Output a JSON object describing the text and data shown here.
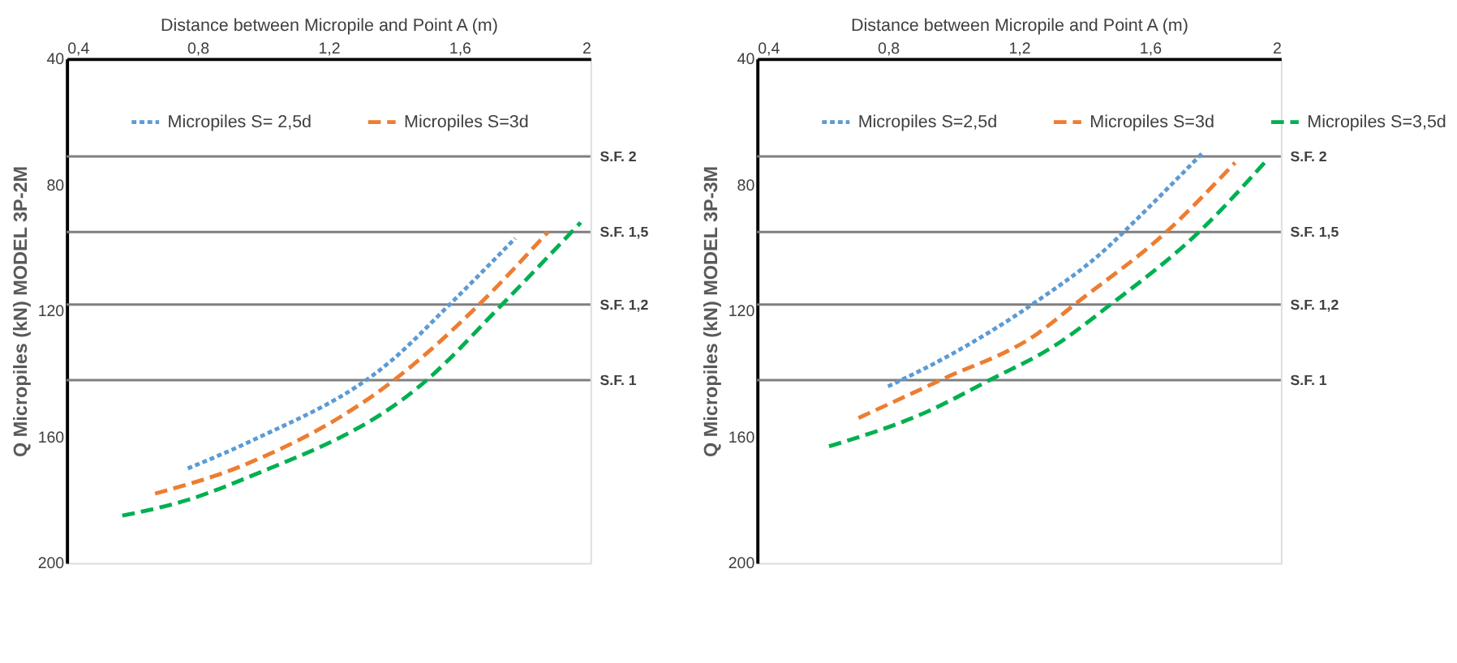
{
  "chart_data": [
    {
      "type": "line",
      "xlabel": "Distance between Micropile and Point A  (m)",
      "ylabel": "Q Micropiles (kN) MODEL 3P-2M",
      "xlim": [
        0.4,
        2
      ],
      "xticks": [
        {
          "value": 0.4,
          "label": "0,4"
        },
        {
          "value": 0.8,
          "label": "0,8"
        },
        {
          "value": 1.2,
          "label": "1,2"
        },
        {
          "value": 1.6,
          "label": "1,6"
        },
        2
      ],
      "ylim": [
        200,
        40
      ],
      "yticks": [
        40,
        80,
        120,
        160,
        200
      ],
      "grid": false,
      "legend": "top",
      "marker": "none",
      "series": [
        {
          "name": "Micropiles S= 2,5d",
          "color": "#5b9bd5",
          "line_style": "dotted",
          "x": [
            0.77,
            0.97,
            1.39,
            1.57,
            1.77
          ],
          "values": [
            170,
            161,
            136,
            118,
            97
          ]
        },
        {
          "name": "Micropiles S=3d",
          "color": "#ed7d31",
          "line_style": "dashed",
          "x": [
            0.67,
            0.94,
            1.4,
            1.66,
            1.87
          ],
          "values": [
            178,
            169,
            142,
            118,
            95
          ]
        },
        {
          "color": "#00b050",
          "line_style": "dashed",
          "x": [
            0.57,
            0.77,
            0.95,
            1.5,
            1.73,
            1.97
          ],
          "values": [
            185,
            180,
            173,
            142,
            118,
            92
          ]
        }
      ],
      "ref_lines": [
        {
          "axis": "y",
          "value": 71,
          "label": "S.F. 2",
          "color": "#7f7f7f"
        },
        {
          "axis": "y",
          "value": 95,
          "label": "S.F. 1,5",
          "color": "#7f7f7f"
        },
        {
          "axis": "y",
          "value": 118,
          "label": "S.F. 1,2",
          "color": "#7f7f7f"
        },
        {
          "axis": "y",
          "value": 142,
          "label": "S.F. 1",
          "color": "#7f7f7f"
        }
      ]
    },
    {
      "type": "line",
      "xlabel": "Distance between Micropile and Point A  (m)",
      "ylabel": "Q Micropiles (kN) MODEL 3P-3M",
      "xlim": [
        0.4,
        2
      ],
      "xticks": [
        {
          "value": 0.4,
          "label": "0,4"
        },
        {
          "value": 0.8,
          "label": "0,8"
        },
        {
          "value": 1.2,
          "label": "1,2"
        },
        {
          "value": 1.6,
          "label": "1,6"
        },
        2
      ],
      "ylim": [
        200,
        40
      ],
      "yticks": [
        40,
        80,
        120,
        160,
        200
      ],
      "grid": false,
      "legend": "top",
      "marker": "none",
      "series": [
        {
          "name": "Micropiles S=2,5d",
          "color": "#5b9bd5",
          "line_style": "dotted",
          "x": [
            0.8,
            0.99,
            1.24,
            1.48,
            1.52,
            1.76
          ],
          "values": [
            144,
            134,
            118,
            99,
            95,
            70
          ]
        },
        {
          "name": "Micropiles S=3d",
          "color": "#ed7d31",
          "line_style": "dashed",
          "x": [
            0.71,
            0.96,
            1.26,
            1.37,
            1.65,
            1.86
          ],
          "values": [
            154,
            142,
            127,
            118,
            95,
            73
          ]
        },
        {
          "name": "Micropiles S=3,5d",
          "color": "#00b050",
          "line_style": "dashed",
          "x": [
            0.62,
            0.92,
            1.11,
            1.31,
            1.48,
            1.76,
            1.95
          ],
          "values": [
            163,
            152,
            142,
            131,
            118,
            94,
            73
          ]
        }
      ],
      "ref_lines": [
        {
          "axis": "y",
          "value": 71,
          "label": "S.F. 2",
          "color": "#7f7f7f"
        },
        {
          "axis": "y",
          "value": 95,
          "label": "S.F. 1,5",
          "color": "#7f7f7f"
        },
        {
          "axis": "y",
          "value": 118,
          "label": "S.F. 1,2",
          "color": "#7f7f7f"
        },
        {
          "axis": "y",
          "value": 142,
          "label": "S.F. 1",
          "color": "#7f7f7f"
        }
      ]
    }
  ]
}
